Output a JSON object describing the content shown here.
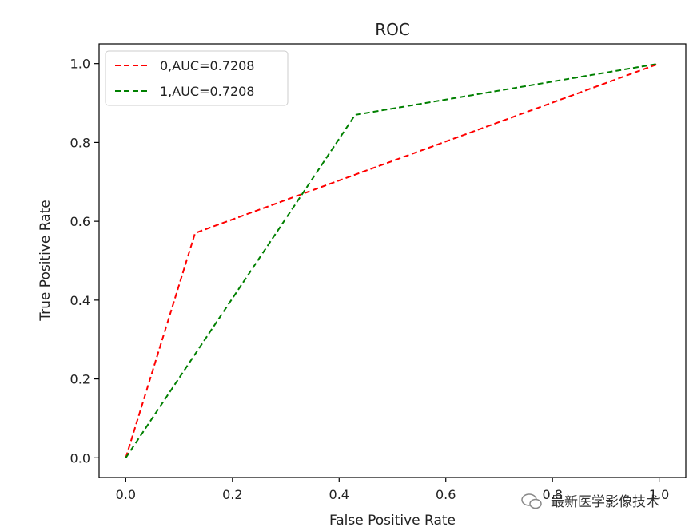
{
  "chart_data": {
    "type": "line",
    "title": "ROC",
    "xlabel": "False Positive Rate",
    "ylabel": "True Positive Rate",
    "xlim": [
      -0.05,
      1.05
    ],
    "ylim": [
      -0.05,
      1.05
    ],
    "xticks": [
      "0.0",
      "0.2",
      "0.4",
      "0.6",
      "0.8",
      "1.0"
    ],
    "yticks": [
      "0.0",
      "0.2",
      "0.4",
      "0.6",
      "0.8",
      "1.0"
    ],
    "grid": false,
    "legend": "top-left",
    "series": [
      {
        "name": "0,AUC=0.7208",
        "color": "#ff0000",
        "style": "dashed",
        "x": [
          0.0,
          0.13,
          1.0
        ],
        "y": [
          0.0,
          0.57,
          1.0
        ]
      },
      {
        "name": "1,AUC=0.7208",
        "color": "#008000",
        "style": "dashed",
        "x": [
          0.0,
          0.43,
          1.0
        ],
        "y": [
          0.0,
          0.87,
          1.0
        ]
      }
    ]
  },
  "watermark": {
    "text": "最新医学影像技术",
    "icon": "wechat-icon"
  }
}
